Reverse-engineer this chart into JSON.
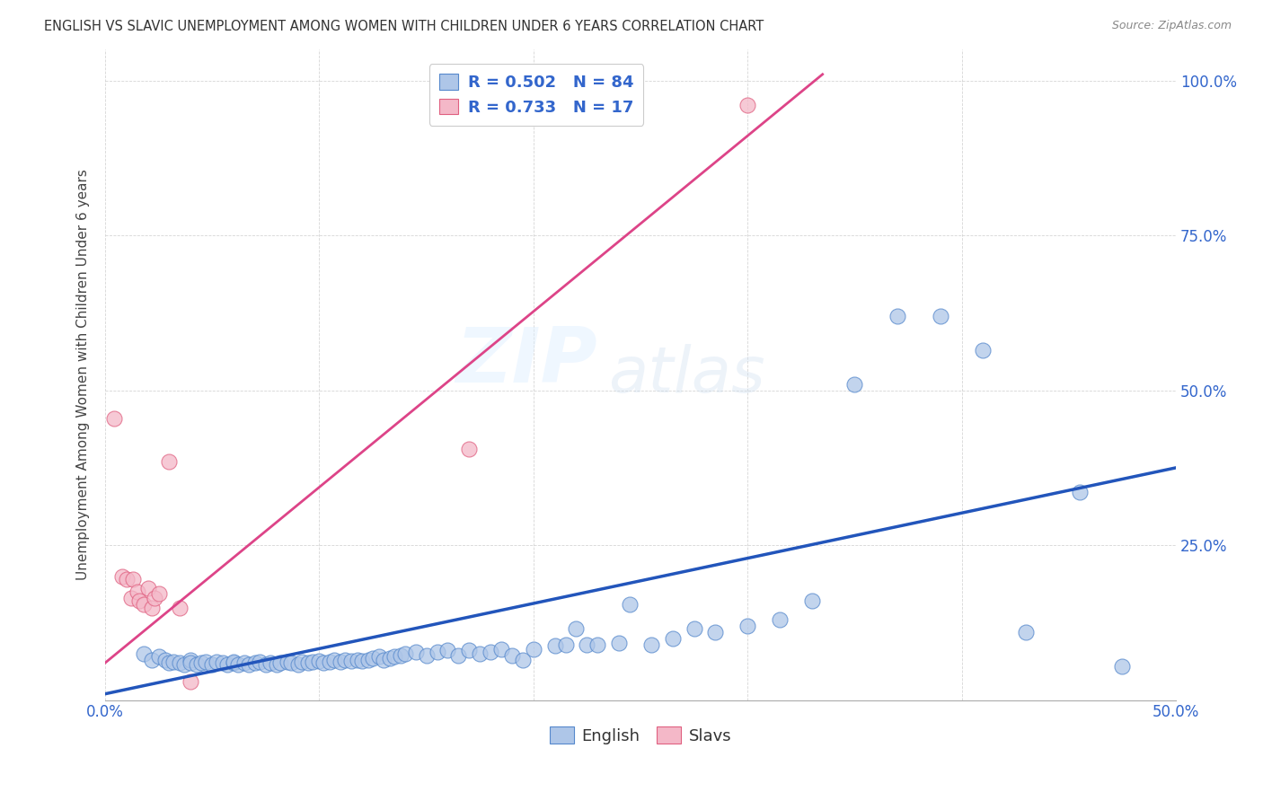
{
  "title": "ENGLISH VS SLAVIC UNEMPLOYMENT AMONG WOMEN WITH CHILDREN UNDER 6 YEARS CORRELATION CHART",
  "source": "Source: ZipAtlas.com",
  "ylabel": "Unemployment Among Women with Children Under 6 years",
  "xlim": [
    0.0,
    0.5
  ],
  "ylim": [
    0.0,
    1.05
  ],
  "xticks": [
    0.0,
    0.1,
    0.2,
    0.3,
    0.4,
    0.5
  ],
  "xticklabels": [
    "0.0%",
    "",
    "",
    "",
    "",
    "50.0%"
  ],
  "ytick_positions": [
    0.0,
    0.25,
    0.5,
    0.75,
    1.0
  ],
  "yticklabels": [
    "",
    "25.0%",
    "50.0%",
    "75.0%",
    "100.0%"
  ],
  "english_R": 0.502,
  "english_N": 84,
  "slavic_R": 0.733,
  "slavic_N": 17,
  "english_color": "#AEC6E8",
  "english_edge_color": "#5588CC",
  "slavic_color": "#F4B8C8",
  "slavic_edge_color": "#E06080",
  "english_line_color": "#2255BB",
  "slavic_line_color": "#DD4488",
  "legend_text_color": "#3366CC",
  "watermark_zip": "ZIP",
  "watermark_atlas": "atlas",
  "english_scatter_x": [
    0.018,
    0.022,
    0.025,
    0.028,
    0.03,
    0.032,
    0.035,
    0.037,
    0.04,
    0.04,
    0.043,
    0.045,
    0.047,
    0.05,
    0.052,
    0.055,
    0.057,
    0.06,
    0.06,
    0.062,
    0.065,
    0.067,
    0.07,
    0.072,
    0.075,
    0.077,
    0.08,
    0.082,
    0.085,
    0.087,
    0.09,
    0.092,
    0.095,
    0.097,
    0.1,
    0.102,
    0.105,
    0.107,
    0.11,
    0.112,
    0.115,
    0.118,
    0.12,
    0.123,
    0.125,
    0.128,
    0.13,
    0.133,
    0.135,
    0.138,
    0.14,
    0.145,
    0.15,
    0.155,
    0.16,
    0.165,
    0.17,
    0.175,
    0.18,
    0.185,
    0.19,
    0.195,
    0.2,
    0.21,
    0.215,
    0.22,
    0.225,
    0.23,
    0.24,
    0.245,
    0.255,
    0.265,
    0.275,
    0.285,
    0.3,
    0.315,
    0.33,
    0.35,
    0.37,
    0.39,
    0.41,
    0.43,
    0.455,
    0.475
  ],
  "english_scatter_y": [
    0.075,
    0.065,
    0.07,
    0.065,
    0.06,
    0.062,
    0.06,
    0.058,
    0.065,
    0.06,
    0.058,
    0.06,
    0.062,
    0.058,
    0.062,
    0.06,
    0.058,
    0.06,
    0.062,
    0.058,
    0.06,
    0.058,
    0.06,
    0.062,
    0.058,
    0.06,
    0.058,
    0.06,
    0.062,
    0.06,
    0.058,
    0.062,
    0.06,
    0.062,
    0.063,
    0.06,
    0.062,
    0.065,
    0.062,
    0.065,
    0.063,
    0.065,
    0.063,
    0.065,
    0.068,
    0.07,
    0.065,
    0.068,
    0.07,
    0.072,
    0.075,
    0.078,
    0.072,
    0.078,
    0.08,
    0.072,
    0.08,
    0.075,
    0.078,
    0.082,
    0.072,
    0.065,
    0.082,
    0.088,
    0.09,
    0.115,
    0.09,
    0.09,
    0.092,
    0.155,
    0.09,
    0.1,
    0.115,
    0.11,
    0.12,
    0.13,
    0.16,
    0.51,
    0.62,
    0.62,
    0.565,
    0.11,
    0.335,
    0.055
  ],
  "slavic_scatter_x": [
    0.004,
    0.008,
    0.01,
    0.012,
    0.013,
    0.015,
    0.016,
    0.018,
    0.02,
    0.022,
    0.023,
    0.025,
    0.03,
    0.035,
    0.04,
    0.17,
    0.3
  ],
  "slavic_scatter_y": [
    0.455,
    0.2,
    0.195,
    0.165,
    0.195,
    0.175,
    0.16,
    0.155,
    0.18,
    0.148,
    0.165,
    0.172,
    0.385,
    0.148,
    0.03,
    0.405,
    0.96
  ],
  "english_trend_x": [
    0.0,
    0.5
  ],
  "english_trend_y": [
    0.01,
    0.375
  ],
  "slavic_trend_x": [
    0.0,
    0.335
  ],
  "slavic_trend_y": [
    0.06,
    1.01
  ]
}
